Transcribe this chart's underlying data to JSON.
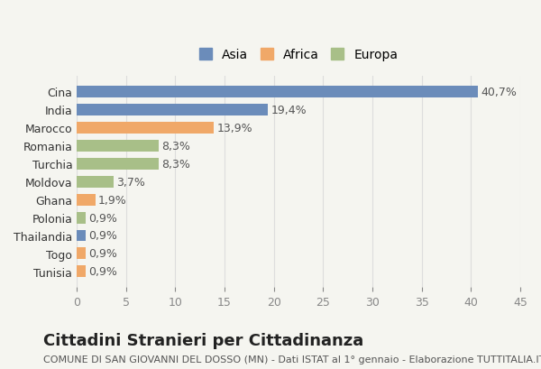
{
  "categories": [
    "Tunisia",
    "Togo",
    "Thailandia",
    "Polonia",
    "Ghana",
    "Moldova",
    "Turchia",
    "Romania",
    "Marocco",
    "India",
    "Cina"
  ],
  "values": [
    0.9,
    0.9,
    0.9,
    0.9,
    1.9,
    3.7,
    8.3,
    8.3,
    13.9,
    19.4,
    40.7
  ],
  "labels": [
    "0,9%",
    "0,9%",
    "0,9%",
    "0,9%",
    "1,9%",
    "3,7%",
    "8,3%",
    "8,3%",
    "13,9%",
    "19,4%",
    "40,7%"
  ],
  "colors": [
    "#f0a868",
    "#f0a868",
    "#6b8cba",
    "#a8bf88",
    "#f0a868",
    "#a8bf88",
    "#a8bf88",
    "#a8bf88",
    "#f0a868",
    "#6b8cba",
    "#6b8cba"
  ],
  "continent": [
    "Africa",
    "Africa",
    "Asia",
    "Europa",
    "Africa",
    "Europa",
    "Europa",
    "Europa",
    "Africa",
    "Asia",
    "Asia"
  ],
  "legend": {
    "Asia": "#6b8cba",
    "Africa": "#f0a868",
    "Europa": "#a8bf88"
  },
  "title": "Cittadini Stranieri per Cittadinanza",
  "subtitle": "COMUNE DI SAN GIOVANNI DEL DOSSO (MN) - Dati ISTAT al 1° gennaio - Elaborazione TUTTITALIA.IT",
  "xlabel": "",
  "xlim": [
    0,
    45
  ],
  "xticks": [
    0,
    5,
    10,
    15,
    20,
    25,
    30,
    35,
    40,
    45
  ],
  "background_color": "#f5f5f0",
  "bar_background": "#ffffff",
  "grid_color": "#dddddd",
  "title_fontsize": 13,
  "subtitle_fontsize": 8,
  "tick_fontsize": 9,
  "label_fontsize": 9
}
